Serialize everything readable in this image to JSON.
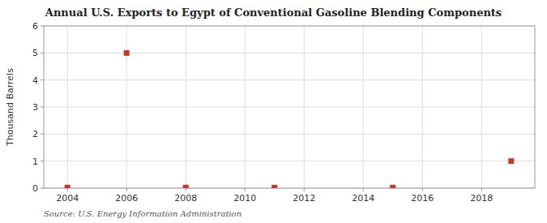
{
  "chart_data": {
    "type": "scatter",
    "title": "Annual U.S. Exports to Egypt of Conventional Gasoline Blending Components",
    "y_label": "Thousand Barrels",
    "source": "Source: U.S. Energy Information Administration",
    "x": [
      2004,
      2006,
      2008,
      2011,
      2015,
      2019
    ],
    "values": [
      0.02,
      5,
      0.02,
      0.02,
      0.02,
      1
    ],
    "color": "#c0392b",
    "marker": "square",
    "xlim": [
      2003.2,
      2019.8
    ],
    "ylim": [
      0,
      6
    ],
    "xticks": [
      2004,
      2006,
      2008,
      2010,
      2012,
      2014,
      2016,
      2018
    ],
    "yticks": [
      0,
      1,
      2,
      3,
      4,
      5,
      6
    ],
    "grid": true
  }
}
